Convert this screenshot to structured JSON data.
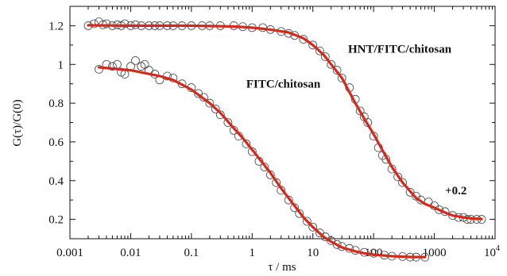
{
  "chart_data": {
    "type": "scatter",
    "x_scale": "log",
    "xlim": [
      0.001,
      10000
    ],
    "ylim": [
      0.1,
      1.3
    ],
    "x_ticks": [
      {
        "value": 0.001,
        "label": "0.001"
      },
      {
        "value": 0.01,
        "label": "0.01"
      },
      {
        "value": 0.1,
        "label": "0.1"
      },
      {
        "value": 1,
        "label": "1"
      },
      {
        "value": 10,
        "label": "10"
      },
      {
        "value": 100,
        "label": "100"
      },
      {
        "value": 1000,
        "label": "1000"
      }
    ],
    "x_last_tick": {
      "value": 10000,
      "base": "10",
      "exp": "4"
    },
    "y_ticks": [
      {
        "value": 0.2,
        "label": "0.2"
      },
      {
        "value": 0.4,
        "label": "0.4"
      },
      {
        "value": 0.6,
        "label": "0.6"
      },
      {
        "value": 0.8,
        "label": "0.8"
      },
      {
        "value": 1.0,
        "label": "1"
      },
      {
        "value": 1.2,
        "label": "1.2"
      }
    ],
    "xlabel": "τ / ms",
    "ylabel": "G(τ)/G(0)",
    "grid": false,
    "fit_color": "#d42a1c",
    "marker_color": "#444444",
    "series": [
      {
        "name": "HNT/FITC/chitosan",
        "label_at": {
          "x": 38,
          "y": 1.06
        },
        "offset_label": "+0.2",
        "offset_label_at": {
          "x": 1500,
          "y": 0.33
        },
        "points": [
          [
            0.002,
            1.2
          ],
          [
            0.0025,
            1.21
          ],
          [
            0.003,
            1.22
          ],
          [
            0.0035,
            1.205
          ],
          [
            0.004,
            1.21
          ],
          [
            0.005,
            1.2
          ],
          [
            0.006,
            1.205
          ],
          [
            0.007,
            1.2
          ],
          [
            0.008,
            1.21
          ],
          [
            0.01,
            1.2
          ],
          [
            0.012,
            1.205
          ],
          [
            0.015,
            1.2
          ],
          [
            0.02,
            1.2
          ],
          [
            0.025,
            1.2
          ],
          [
            0.03,
            1.2
          ],
          [
            0.04,
            1.2
          ],
          [
            0.05,
            1.2
          ],
          [
            0.07,
            1.2
          ],
          [
            0.1,
            1.2
          ],
          [
            0.15,
            1.2
          ],
          [
            0.2,
            1.2
          ],
          [
            0.3,
            1.2
          ],
          [
            0.5,
            1.2
          ],
          [
            0.7,
            1.195
          ],
          [
            1.0,
            1.19
          ],
          [
            1.5,
            1.19
          ],
          [
            2.0,
            1.18
          ],
          [
            3.0,
            1.17
          ],
          [
            4.0,
            1.16
          ],
          [
            5.0,
            1.15
          ],
          [
            7.0,
            1.13
          ],
          [
            10,
            1.1
          ],
          [
            13,
            1.07
          ],
          [
            16,
            1.04
          ],
          [
            20,
            1.0
          ],
          [
            25,
            0.97
          ],
          [
            30,
            0.93
          ],
          [
            40,
            0.88
          ],
          [
            50,
            0.82
          ],
          [
            60,
            0.76
          ],
          [
            70,
            0.73
          ],
          [
            80,
            0.7
          ],
          [
            100,
            0.63
          ],
          [
            120,
            0.57
          ],
          [
            140,
            0.53
          ],
          [
            160,
            0.51
          ],
          [
            200,
            0.46
          ],
          [
            250,
            0.42
          ],
          [
            300,
            0.39
          ],
          [
            400,
            0.34
          ],
          [
            500,
            0.32
          ],
          [
            600,
            0.3
          ],
          [
            800,
            0.29
          ],
          [
            1000,
            0.27
          ],
          [
            1200,
            0.25
          ],
          [
            1500,
            0.24
          ],
          [
            2000,
            0.22
          ],
          [
            2500,
            0.21
          ],
          [
            3000,
            0.21
          ],
          [
            3500,
            0.2
          ],
          [
            4000,
            0.2
          ],
          [
            5000,
            0.2
          ],
          [
            6000,
            0.2
          ]
        ],
        "fit": [
          [
            0.002,
            1.202
          ],
          [
            0.01,
            1.2
          ],
          [
            0.1,
            1.2
          ],
          [
            0.5,
            1.196
          ],
          [
            1,
            1.19
          ],
          [
            2,
            1.18
          ],
          [
            4,
            1.165
          ],
          [
            7,
            1.135
          ],
          [
            10,
            1.1
          ],
          [
            15,
            1.05
          ],
          [
            20,
            1.0
          ],
          [
            30,
            0.93
          ],
          [
            50,
            0.8
          ],
          [
            70,
            0.72
          ],
          [
            100,
            0.64
          ],
          [
            150,
            0.54
          ],
          [
            200,
            0.47
          ],
          [
            300,
            0.39
          ],
          [
            500,
            0.31
          ],
          [
            700,
            0.28
          ],
          [
            1000,
            0.26
          ],
          [
            1500,
            0.235
          ],
          [
            2000,
            0.22
          ],
          [
            3000,
            0.21
          ],
          [
            4000,
            0.205
          ],
          [
            6000,
            0.202
          ]
        ]
      },
      {
        "name": "FITC/chitosan",
        "label_at": {
          "x": 0.8,
          "y": 0.88
        },
        "points": [
          [
            0.003,
            0.975
          ],
          [
            0.004,
            1.0
          ],
          [
            0.005,
            0.99
          ],
          [
            0.006,
            1.0
          ],
          [
            0.007,
            0.96
          ],
          [
            0.008,
            0.95
          ],
          [
            0.01,
            0.99
          ],
          [
            0.012,
            1.02
          ],
          [
            0.015,
            0.99
          ],
          [
            0.017,
            1.0
          ],
          [
            0.02,
            0.97
          ],
          [
            0.025,
            0.95
          ],
          [
            0.03,
            0.92
          ],
          [
            0.04,
            0.94
          ],
          [
            0.05,
            0.93
          ],
          [
            0.07,
            0.9
          ],
          [
            0.1,
            0.88
          ],
          [
            0.13,
            0.85
          ],
          [
            0.16,
            0.83
          ],
          [
            0.2,
            0.8
          ],
          [
            0.25,
            0.77
          ],
          [
            0.3,
            0.74
          ],
          [
            0.4,
            0.7
          ],
          [
            0.5,
            0.66
          ],
          [
            0.6,
            0.63
          ],
          [
            0.8,
            0.59
          ],
          [
            1.0,
            0.55
          ],
          [
            1.3,
            0.5
          ],
          [
            1.6,
            0.47
          ],
          [
            2.0,
            0.43
          ],
          [
            2.5,
            0.39
          ],
          [
            3.0,
            0.35
          ],
          [
            4.0,
            0.3
          ],
          [
            5.0,
            0.26
          ],
          [
            6.0,
            0.23
          ],
          [
            8.0,
            0.19
          ],
          [
            10,
            0.16
          ],
          [
            13,
            0.13
          ],
          [
            16,
            0.11
          ],
          [
            20,
            0.09
          ],
          [
            25,
            0.07
          ],
          [
            30,
            0.06
          ],
          [
            40,
            0.05
          ],
          [
            50,
            0.04
          ],
          [
            70,
            0.03
          ],
          [
            100,
            0.025
          ],
          [
            150,
            0.015
          ],
          [
            200,
            0.01
          ],
          [
            300,
            0.008
          ],
          [
            400,
            0.005
          ],
          [
            500,
            0.005
          ],
          [
            700,
            0.005
          ]
        ],
        "fit": [
          [
            0.003,
            0.985
          ],
          [
            0.01,
            0.97
          ],
          [
            0.03,
            0.94
          ],
          [
            0.05,
            0.92
          ],
          [
            0.1,
            0.87
          ],
          [
            0.2,
            0.8
          ],
          [
            0.3,
            0.75
          ],
          [
            0.5,
            0.67
          ],
          [
            0.7,
            0.62
          ],
          [
            1,
            0.56
          ],
          [
            1.5,
            0.49
          ],
          [
            2,
            0.44
          ],
          [
            3,
            0.36
          ],
          [
            5,
            0.27
          ],
          [
            7,
            0.21
          ],
          [
            10,
            0.16
          ],
          [
            15,
            0.11
          ],
          [
            20,
            0.085
          ],
          [
            30,
            0.055
          ],
          [
            50,
            0.035
          ],
          [
            70,
            0.025
          ],
          [
            100,
            0.018
          ],
          [
            200,
            0.01
          ],
          [
            400,
            0.006
          ],
          [
            700,
            0.005
          ]
        ]
      }
    ]
  }
}
